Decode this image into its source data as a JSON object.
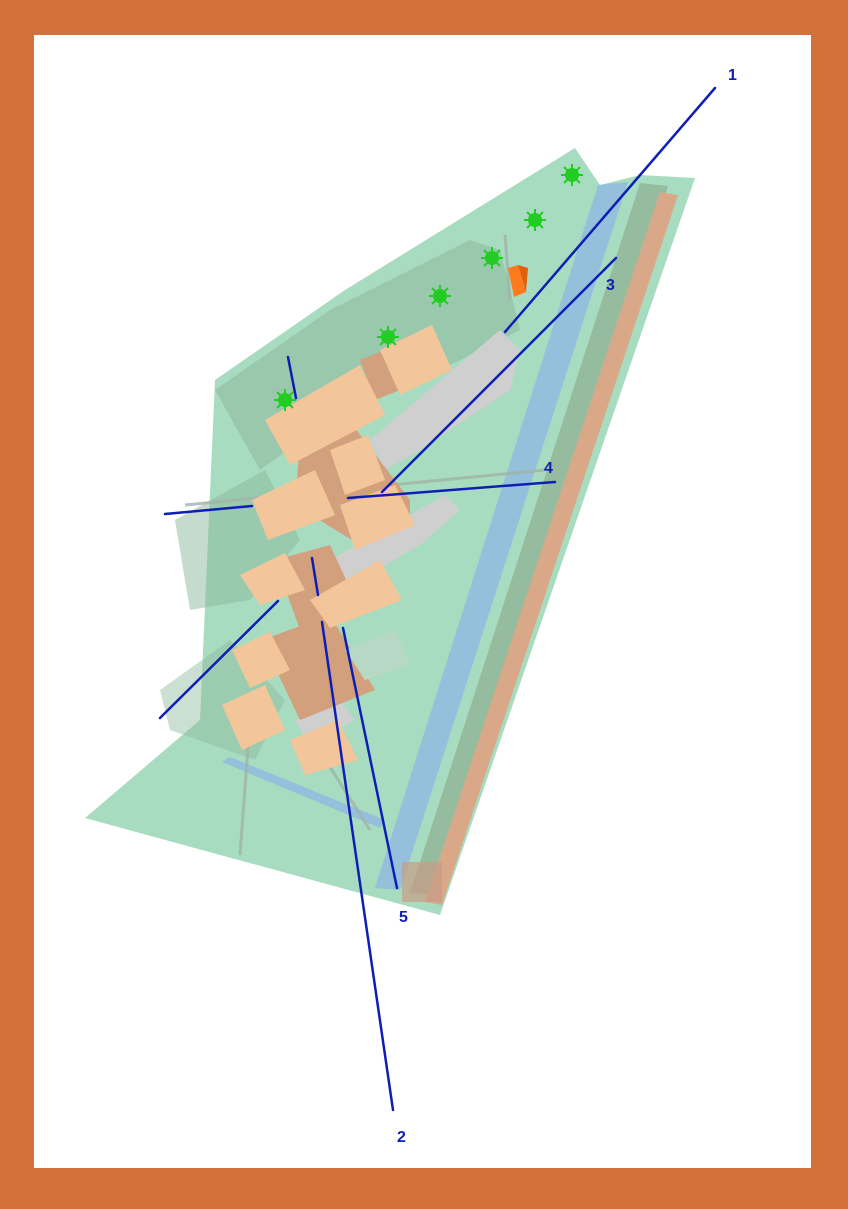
{
  "colors": {
    "frame": "#d2723a",
    "sheet": "#ffffff",
    "ground": "#a8dcc0",
    "slope_shade": "#8cb89c",
    "canal": "#94c0dc",
    "path_strip": "#96bca0",
    "brown_strip": "#d8a888",
    "building": "#f2c69a",
    "building_shade": "#d2a07c",
    "courtyard": "#cfcfcf",
    "shed": "#ff7a1a",
    "tree": "#22cc22",
    "section_line": "#0e1eb4",
    "label": "#0e1eb4"
  },
  "icons": {
    "tree": "tree-icon",
    "shed": "shed-icon"
  },
  "section_lines": [
    {
      "label": "1"
    },
    {
      "label": "2"
    },
    {
      "label": "3"
    },
    {
      "label": "4"
    },
    {
      "label": "5"
    }
  ]
}
